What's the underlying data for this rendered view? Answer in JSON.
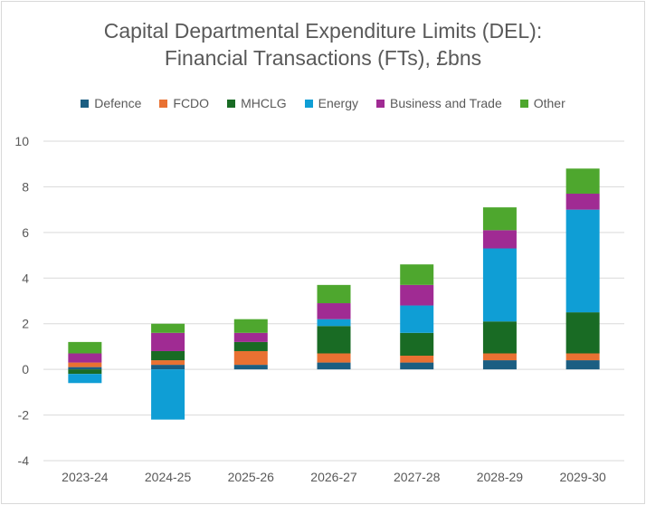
{
  "chart_data": {
    "type": "bar",
    "stacked": true,
    "title": "Capital Departmental Expenditure Limits (DEL):",
    "subtitle": "Financial Transactions (FTs), £bns",
    "xlabel": "",
    "ylabel": "",
    "ylim": [
      -4,
      10
    ],
    "yticks": [
      -4,
      -2,
      0,
      2,
      4,
      6,
      8,
      10
    ],
    "grid": true,
    "legend_position": "top",
    "categories": [
      "2023-24",
      "2024-25",
      "2025-26",
      "2026-27",
      "2027-28",
      "2028-29",
      "2029-30"
    ],
    "series": [
      {
        "name": "Defence",
        "color": "#1B5E82",
        "values": [
          0.1,
          0.2,
          0.2,
          0.3,
          0.3,
          0.4,
          0.4
        ]
      },
      {
        "name": "FCDO",
        "color": "#E97132",
        "values": [
          0.2,
          0.2,
          0.6,
          0.4,
          0.3,
          0.3,
          0.3
        ]
      },
      {
        "name": "MHCLG",
        "color": "#196B24",
        "values": [
          -0.2,
          0.4,
          0.4,
          1.2,
          1.0,
          1.4,
          1.8
        ]
      },
      {
        "name": "Energy",
        "color": "#0F9ED5",
        "values": [
          -0.4,
          -2.2,
          0.0,
          0.3,
          1.2,
          3.2,
          4.5
        ]
      },
      {
        "name": "Business and Trade",
        "color": "#A02B93",
        "values": [
          0.4,
          0.8,
          0.4,
          0.7,
          0.9,
          0.8,
          0.7
        ]
      },
      {
        "name": "Other",
        "color": "#4EA72E",
        "values": [
          0.5,
          0.4,
          0.6,
          0.8,
          0.9,
          1.0,
          1.1
        ]
      }
    ]
  }
}
